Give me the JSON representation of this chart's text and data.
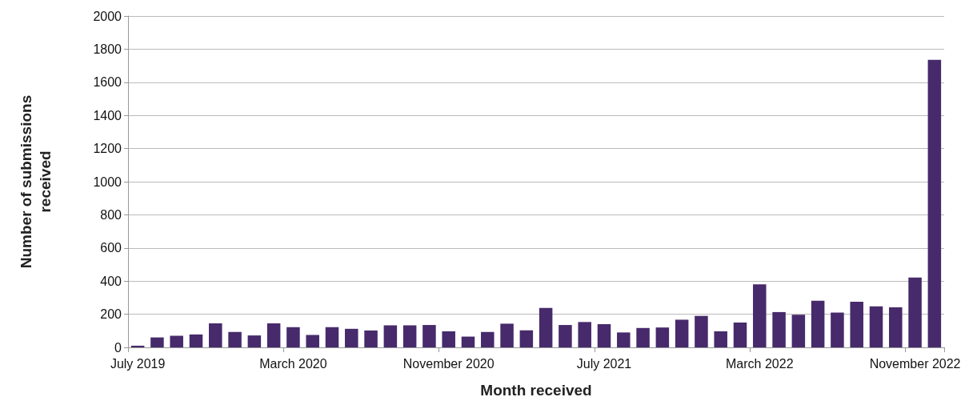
{
  "chart_data": {
    "type": "bar",
    "xlabel": "Month received",
    "ylabel": "Number of submissions received",
    "categories": [
      "July 2019",
      null,
      null,
      null,
      null,
      null,
      null,
      null,
      "March 2020",
      null,
      null,
      null,
      null,
      null,
      null,
      null,
      "November 2020",
      null,
      null,
      null,
      null,
      null,
      null,
      null,
      "July 2021",
      null,
      null,
      null,
      null,
      null,
      null,
      null,
      "March 2022",
      null,
      null,
      null,
      null,
      null,
      null,
      null,
      "November 2022",
      null
    ],
    "values": [
      10,
      60,
      70,
      78,
      145,
      93,
      72,
      145,
      122,
      75,
      122,
      112,
      102,
      133,
      133,
      135,
      97,
      65,
      93,
      143,
      103,
      238,
      135,
      153,
      140,
      90,
      117,
      120,
      167,
      190,
      97,
      150,
      380,
      213,
      197,
      282,
      210,
      275,
      248,
      242,
      422,
      1735
    ],
    "color": "#472a6b",
    "ylim": [
      0,
      2000
    ],
    "yticks": [
      0,
      200,
      400,
      600,
      800,
      1000,
      1200,
      1400,
      1600,
      1800,
      2000
    ],
    "grid": "y"
  }
}
